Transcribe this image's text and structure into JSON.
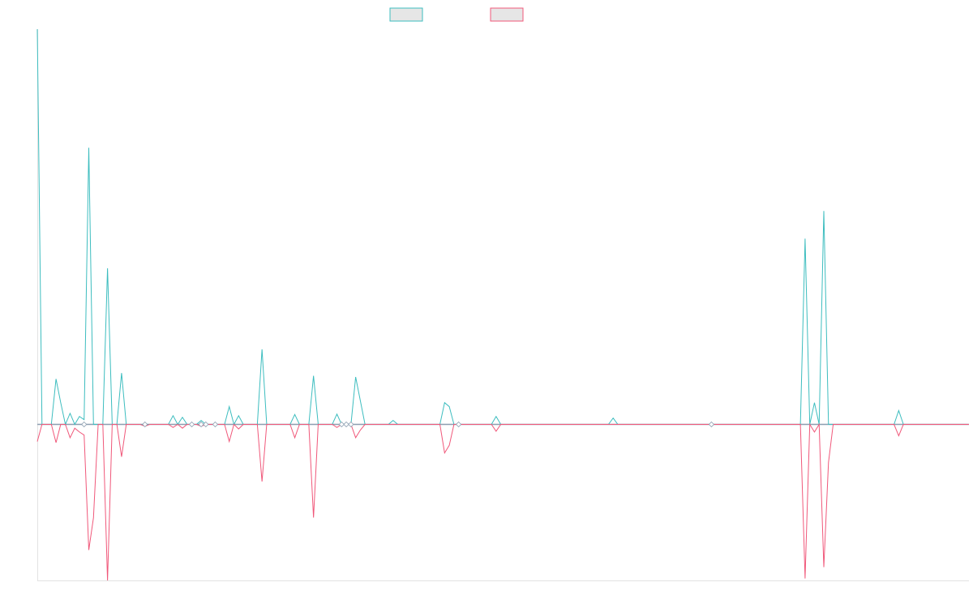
{
  "colors": {
    "series_a": "#3dbdbf",
    "series_b": "#f0587a",
    "swatch_fill": "#e6e6e6",
    "axis": "#e2e2e2",
    "baseline": "#8c9eb0"
  },
  "chart_data": {
    "type": "line",
    "title": "",
    "xlabel": "",
    "ylabel": "",
    "grid": false,
    "legend": "top-center",
    "x_count": 200,
    "ylim": [
      -1,
      1
    ],
    "series": [
      {
        "legend_index": 0,
        "color": "#3dbdbf",
        "points": [
          [
            0,
            1.0
          ],
          [
            4,
            0.115
          ],
          [
            5,
            0.055
          ],
          [
            7,
            0.028
          ],
          [
            8,
            0.0
          ],
          [
            9,
            0.02
          ],
          [
            10,
            0.012
          ],
          [
            11,
            0.7
          ],
          [
            12,
            0.0
          ],
          [
            15,
            0.395
          ],
          [
            16,
            0.0
          ],
          [
            18,
            0.13
          ],
          [
            23,
            0.0
          ],
          [
            29,
            0.022
          ],
          [
            31,
            0.018
          ],
          [
            33,
            0.0
          ],
          [
            35,
            0.01
          ],
          [
            41,
            0.045
          ],
          [
            43,
            0.022
          ],
          [
            48,
            0.19
          ],
          [
            55,
            0.025
          ],
          [
            59,
            0.123
          ],
          [
            64,
            0.026
          ],
          [
            68,
            0.12
          ],
          [
            69,
            0.06
          ],
          [
            70,
            0.0
          ],
          [
            76,
            0.01
          ],
          [
            87,
            0.055
          ],
          [
            88,
            0.045
          ],
          [
            89,
            0.0
          ],
          [
            98,
            0.02
          ],
          [
            123,
            0.016
          ],
          [
            144,
            0.0
          ],
          [
            164,
            0.47
          ],
          [
            165,
            0.0
          ],
          [
            166,
            0.055
          ],
          [
            167,
            0.0
          ],
          [
            168,
            0.54
          ],
          [
            169,
            0.0
          ],
          [
            184,
            0.035
          ],
          [
            185,
            0.0
          ]
        ]
      },
      {
        "legend_index": 1,
        "color": "#f0587a",
        "points": [
          [
            0,
            -0.045
          ],
          [
            4,
            -0.048
          ],
          [
            7,
            -0.035
          ],
          [
            8,
            -0.01
          ],
          [
            9,
            -0.02
          ],
          [
            10,
            -0.028
          ],
          [
            11,
            -0.33
          ],
          [
            12,
            -0.245
          ],
          [
            15,
            -0.41
          ],
          [
            16,
            -0.0
          ],
          [
            18,
            -0.085
          ],
          [
            23,
            -0.005
          ],
          [
            29,
            -0.008
          ],
          [
            31,
            -0.01
          ],
          [
            35,
            -0.005
          ],
          [
            41,
            -0.045
          ],
          [
            43,
            -0.012
          ],
          [
            48,
            -0.15
          ],
          [
            55,
            -0.035
          ],
          [
            59,
            -0.245
          ],
          [
            64,
            -0.008
          ],
          [
            68,
            -0.035
          ],
          [
            69,
            -0.015
          ],
          [
            87,
            -0.075
          ],
          [
            88,
            -0.055
          ],
          [
            89,
            0.0
          ],
          [
            98,
            -0.018
          ],
          [
            164,
            -0.405
          ],
          [
            165,
            0.0
          ],
          [
            166,
            -0.02
          ],
          [
            167,
            0.0
          ],
          [
            168,
            -0.375
          ],
          [
            169,
            -0.1
          ],
          [
            170,
            0.0
          ],
          [
            184,
            -0.03
          ],
          [
            185,
            0.0
          ]
        ]
      }
    ]
  }
}
